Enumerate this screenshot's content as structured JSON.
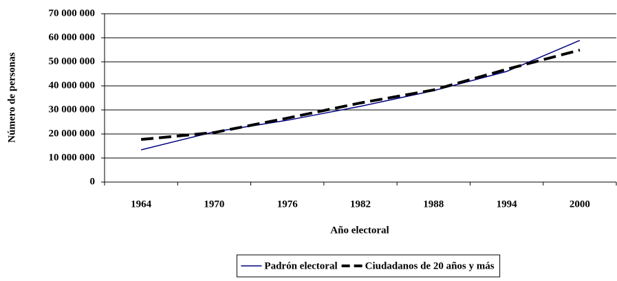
{
  "chart_data": {
    "type": "line",
    "x_label": "Año electoral",
    "y_label": "Número de personas",
    "categories": [
      "1964",
      "1970",
      "1976",
      "1982",
      "1988",
      "1994",
      "2000"
    ],
    "series": [
      {
        "name": "Padrón electoral",
        "color": "#000080",
        "dash": "solid",
        "values": [
          13400000,
          20900000,
          25700000,
          31500000,
          38000000,
          46000000,
          58900000
        ]
      },
      {
        "name": "Ciudadanos de 20 años y más",
        "color": "#000000",
        "dash": "dashed",
        "values": [
          17700000,
          20600000,
          26600000,
          32900000,
          38300000,
          46900000,
          54900000
        ]
      }
    ],
    "ylim": [
      0,
      70000000
    ],
    "yticks": [
      0,
      {
        "value": 10000000,
        "label": "10 000 000"
      },
      {
        "value": 20000000,
        "label": "20 000 000"
      },
      {
        "value": 30000000,
        "label": "30 000 000"
      },
      {
        "value": 40000000,
        "label": "40 000 000"
      },
      {
        "value": 50000000,
        "label": "50 000 000"
      },
      {
        "value": 60000000,
        "label": "60 000 000"
      },
      {
        "value": 70000000,
        "label": "70 000 000"
      }
    ],
    "grid": true,
    "legend": "bottom"
  }
}
